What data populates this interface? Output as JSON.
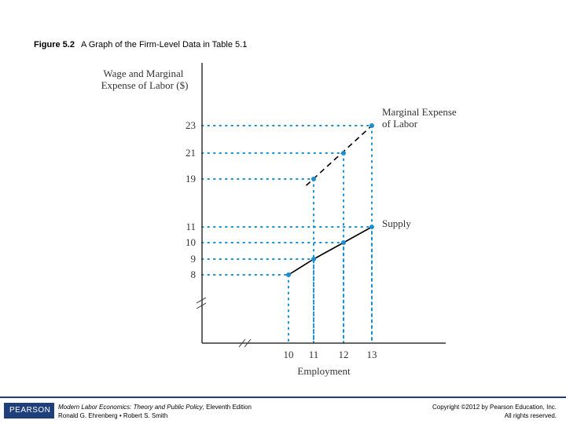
{
  "caption": {
    "figure_number": "Figure 5.2",
    "title": "A Graph of the Firm-Level Data in Table 5.1"
  },
  "chart_data": {
    "type": "line",
    "title": "A Graph of the Firm-Level Data in Table 5.1",
    "ylabel_lines": [
      "Wage and Marginal",
      "Expense of Labor ($)"
    ],
    "xlabel": "Employment",
    "x_ticks": [
      10,
      11,
      12,
      13
    ],
    "y_ticks": [
      8,
      9,
      10,
      11,
      19,
      21,
      23
    ],
    "axis_breaks": [
      "y-axis",
      "x-axis"
    ],
    "series": [
      {
        "name": "Marginal Expense of Labor",
        "label_lines": [
          "Marginal Expense",
          "of Labor"
        ],
        "style": "dashed",
        "x": [
          11,
          12,
          13
        ],
        "y": [
          19,
          21,
          23
        ]
      },
      {
        "name": "Supply",
        "label_lines": [
          "Supply"
        ],
        "style": "solid",
        "x": [
          10,
          11,
          12,
          13
        ],
        "y": [
          8,
          9,
          10,
          11
        ]
      }
    ],
    "guide_lines": "dotted",
    "colors": {
      "point": "#1a8fd0",
      "line": "#000000",
      "guide": "#1a8fd0",
      "axis": "#333333"
    }
  },
  "footer": {
    "publisher": "PEARSON",
    "book_title": "Modern Labor Economics: Theory and Public Policy",
    "edition": ", Eleventh Edition",
    "authors": "Ronald G. Ehrenberg • Robert S. Smith",
    "copyright": "Copyright ©2012 by Pearson Education, Inc.",
    "rights": "All rights reserved."
  }
}
